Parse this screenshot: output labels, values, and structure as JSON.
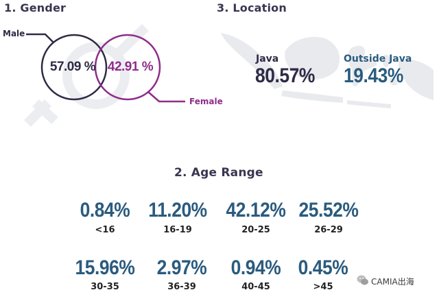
{
  "gender": {
    "title": "1. Gender",
    "male_label": "Male",
    "male_value": "57.09 %",
    "female_label": "Female",
    "female_value": "42.91 %",
    "colors": {
      "male": "#2f2a45",
      "female": "#8e2c8a"
    }
  },
  "location": {
    "title": "3. Location",
    "java_label": "Java",
    "java_value": "80.57%",
    "outside_label": "Outside Java",
    "outside_value": "19.43%",
    "colors": {
      "java": "#2f2a45",
      "outside": "#2a5b7e"
    }
  },
  "age": {
    "title": "2. Age Range",
    "items": [
      {
        "value": "0.84%",
        "label": "<16"
      },
      {
        "value": "11.20%",
        "label": "16-19"
      },
      {
        "value": "42.12%",
        "label": "20-25"
      },
      {
        "value": "25.52%",
        "label": "26-29"
      },
      {
        "value": "15.96%",
        "label": "30-35"
      },
      {
        "value": "2.97%",
        "label": "36-39"
      },
      {
        "value": "0.94%",
        "label": "40-45"
      },
      {
        "value": "0.45%",
        "label": ">45"
      }
    ]
  },
  "watermark": {
    "text": "CAMIA出海",
    "icon": "wechat-icon"
  }
}
